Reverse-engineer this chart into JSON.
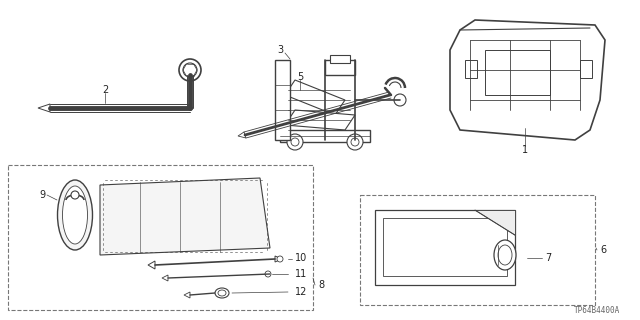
{
  "bg_color": "#ffffff",
  "line_color": "#404040",
  "label_color": "#222222",
  "watermark": "TP64B4400A",
  "figsize": [
    6.4,
    3.2
  ],
  "dpi": 100
}
